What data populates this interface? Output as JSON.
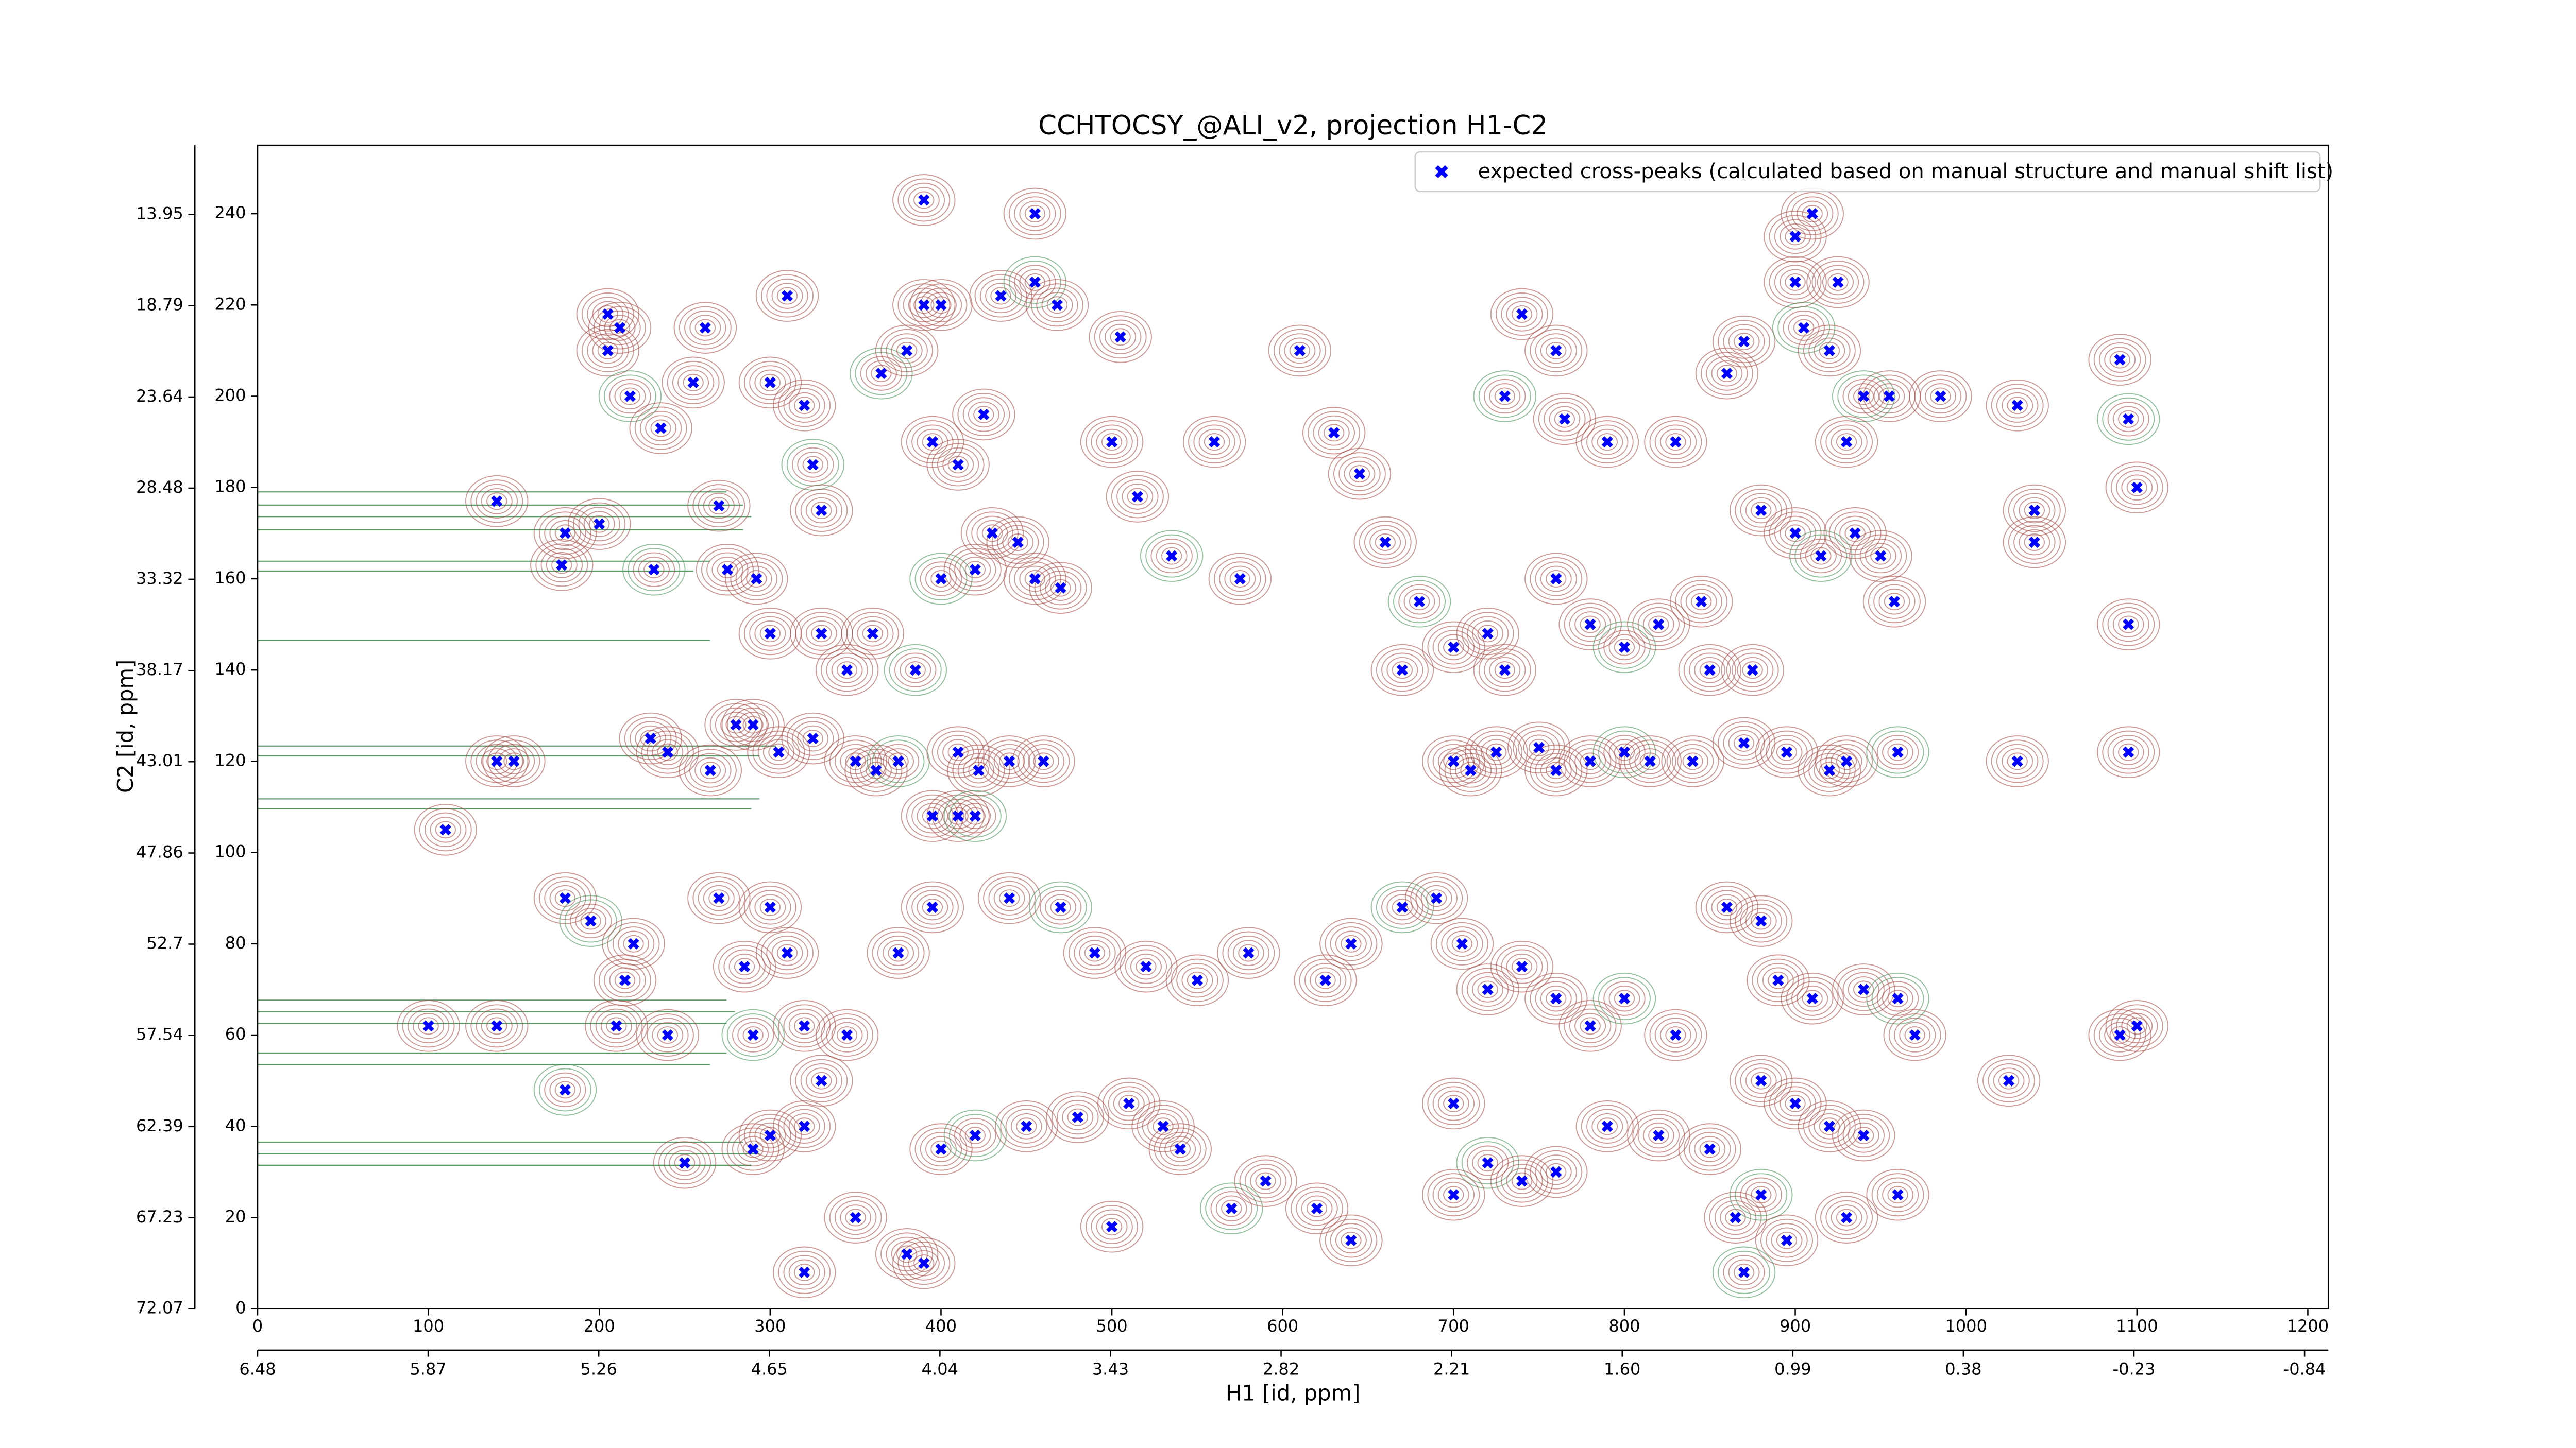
{
  "chart_data": {
    "type": "scatter",
    "title": "CCHTOCSY_@ALI_v2, projection H1-C2",
    "xlabel": "H1 [id, ppm]",
    "ylabel": "C2 [id, ppm]",
    "xlim": [
      0,
      1212
    ],
    "xticks": [
      0,
      100,
      200,
      300,
      400,
      500,
      600,
      700,
      800,
      900,
      1000,
      1100,
      1200
    ],
    "x2lim": [
      6.48,
      -0.925
    ],
    "x2ticks": [
      6.48,
      5.87,
      5.26,
      4.65,
      4.04,
      3.43,
      2.82,
      2.21,
      {
        "value": 1.6,
        "label": "1.60"
      },
      0.99,
      0.38,
      -0.23,
      -0.84
    ],
    "ylim": [
      0,
      255
    ],
    "yticks": [
      0,
      20,
      40,
      60,
      80,
      100,
      120,
      140,
      160,
      180,
      200,
      220,
      240
    ],
    "y2lim": [
      72.07,
      10.27
    ],
    "y2ticks": [
      72.07,
      67.23,
      62.39,
      57.54,
      52.7,
      47.86,
      43.01,
      38.17,
      33.32,
      28.48,
      23.64,
      18.79,
      13.95
    ],
    "legend": "upper right",
    "series": [
      {
        "name": "expected cross-peaks (calculated based on manual structure and manual shift list)",
        "color": "#0000ff",
        "x": [
          205,
          212,
          205,
          218,
          236,
          262,
          255,
          300,
          310,
          320,
          325,
          330,
          270,
          140,
          200,
          180,
          178,
          232,
          275,
          292,
          300,
          330,
          360,
          345,
          385,
          280,
          290,
          305,
          325,
          350,
          362,
          375,
          410,
          422,
          440,
          460,
          395,
          410,
          420,
          110,
          140,
          150,
          230,
          240,
          265,
          365,
          380,
          395,
          410,
          425,
          430,
          445,
          400,
          420,
          455,
          470,
          390,
          400,
          435,
          455,
          468,
          390,
          455,
          505,
          500,
          515,
          535,
          560,
          575,
          610,
          630,
          645,
          660,
          680,
          670,
          700,
          720,
          730,
          760,
          780,
          800,
          820,
          845,
          850,
          875,
          740,
          760,
          730,
          765,
          790,
          830,
          860,
          870,
          900,
          905,
          920,
          930,
          955,
          985,
          880,
          900,
          915,
          935,
          950,
          958,
          900,
          910,
          925,
          940,
          700,
          710,
          725,
          750,
          760,
          780,
          800,
          815,
          840,
          870,
          895,
          920,
          930,
          960,
          1030,
          1095,
          1030,
          1040,
          1040,
          1090,
          1095,
          1100,
          1095,
          1100,
          1025,
          1090,
          180,
          195,
          215,
          220,
          270,
          300,
          310,
          285,
          290,
          320,
          345,
          330,
          375,
          395,
          440,
          470,
          490,
          520,
          550,
          580,
          625,
          640,
          670,
          690,
          705,
          720,
          740,
          760,
          780,
          800,
          830,
          860,
          880,
          890,
          910,
          940,
          960,
          970,
          880,
          900,
          920,
          940,
          700,
          720,
          740,
          760,
          790,
          820,
          850,
          865,
          880,
          895,
          930,
          960,
          350,
          380,
          400,
          420,
          300,
          320,
          450,
          480,
          510,
          530,
          570,
          640,
          700,
          320,
          390,
          500,
          540,
          180,
          100,
          140,
          240,
          210,
          250,
          290,
          870,
          590,
          620
        ],
        "values": [
          218,
          215,
          210,
          200,
          193,
          215,
          203,
          203,
          222,
          198,
          185,
          175,
          176,
          177,
          172,
          170,
          163,
          162,
          162,
          160,
          148,
          148,
          148,
          140,
          140,
          128,
          128,
          122,
          125,
          120,
          118,
          120,
          122,
          118,
          120,
          120,
          108,
          108,
          108,
          105,
          120,
          120,
          125,
          122,
          118,
          205,
          210,
          190,
          185,
          196,
          170,
          168,
          160,
          162,
          160,
          158,
          220,
          220,
          222,
          225,
          220,
          243,
          240,
          213,
          190,
          178,
          165,
          190,
          160,
          210,
          192,
          183,
          168,
          155,
          140,
          145,
          148,
          140,
          160,
          150,
          145,
          150,
          155,
          140,
          140,
          218,
          210,
          200,
          195,
          190,
          190,
          205,
          212,
          225,
          215,
          210,
          190,
          200,
          200,
          175,
          170,
          165,
          170,
          165,
          155,
          235,
          240,
          225,
          200,
          120,
          118,
          122,
          123,
          118,
          120,
          122,
          120,
          120,
          124,
          122,
          118,
          120,
          122,
          120,
          122,
          198,
          175,
          168,
          208,
          195,
          180,
          150,
          62,
          50,
          60,
          90,
          85,
          72,
          80,
          90,
          88,
          78,
          75,
          60,
          62,
          60,
          50,
          78,
          88,
          90,
          88,
          78,
          75,
          72,
          78,
          72,
          80,
          88,
          90,
          80,
          70,
          75,
          68,
          62,
          68,
          60,
          88,
          85,
          72,
          68,
          70,
          68,
          60,
          50,
          45,
          40,
          38,
          45,
          32,
          28,
          30,
          40,
          38,
          35,
          20,
          25,
          15,
          20,
          25,
          20,
          12,
          35,
          38,
          38,
          40,
          40,
          42,
          45,
          40,
          22,
          15,
          25,
          8,
          10,
          18,
          35,
          48,
          62,
          62,
          60,
          62,
          32,
          35,
          8,
          28,
          22
        ]
      }
    ]
  }
}
